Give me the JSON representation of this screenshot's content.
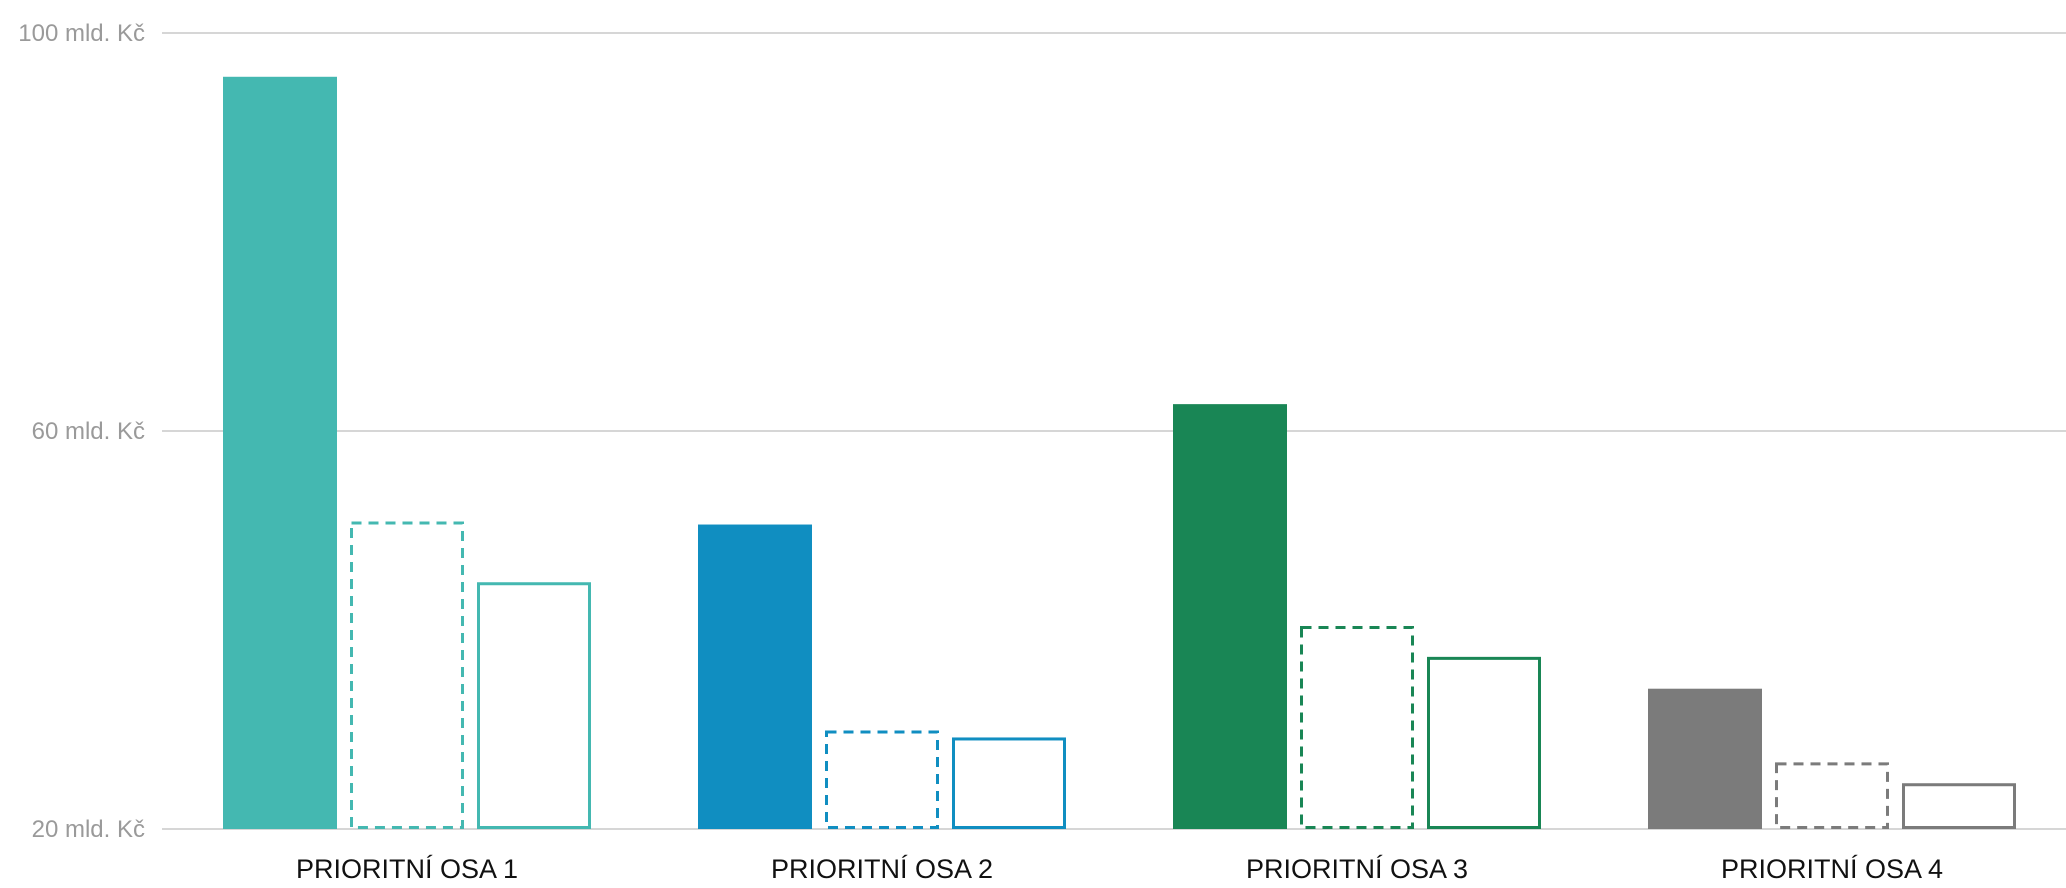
{
  "chart_data": {
    "type": "bar",
    "title": "",
    "xlabel": "",
    "ylabel": "",
    "ylim": [
      20,
      100
    ],
    "yticks": [
      {
        "value": 20,
        "label": "20 mld. Kč"
      },
      {
        "value": 60,
        "label": "60 mld. Kč"
      },
      {
        "value": 100,
        "label": "100 mld. Kč"
      }
    ],
    "grid": true,
    "legend": "none",
    "categories": [
      "PRIORITNÍ OSA 1",
      "PRIORITNÍ OSA 2",
      "PRIORITNÍ OSA 3",
      "PRIORITNÍ OSA 4"
    ],
    "series": [
      {
        "style": "filled",
        "values": [
          95.6,
          50.6,
          62.7,
          34.1
        ]
      },
      {
        "style": "dashed-outline",
        "values": [
          50.9,
          29.9,
          40.4,
          26.7
        ]
      },
      {
        "style": "solid-outline",
        "values": [
          44.8,
          29.2,
          37.3,
          24.6
        ]
      }
    ],
    "category_colors": [
      "#44b8b1",
      "#108ec1",
      "#198655",
      "#7b7b7b"
    ]
  }
}
